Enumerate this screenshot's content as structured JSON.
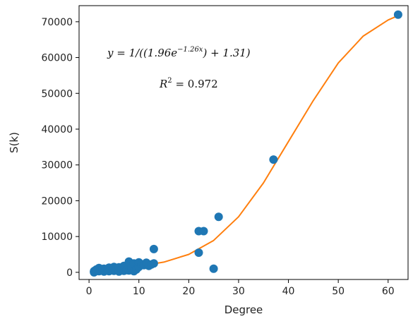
{
  "chart_data": {
    "type": "scatter",
    "title": "",
    "xlabel": "Degree",
    "ylabel": "S(k)",
    "xlim": [
      -2,
      64
    ],
    "ylim": [
      -2000,
      74500
    ],
    "xticks": [
      0,
      10,
      20,
      30,
      40,
      50,
      60
    ],
    "yticks": [
      0,
      10000,
      20000,
      30000,
      40000,
      50000,
      60000,
      70000
    ],
    "grid": false,
    "legend": "none",
    "colors": {
      "points": "#1f77b4",
      "fit": "#ff7f0e",
      "axes": "#000000"
    },
    "series": [
      {
        "type": "scatter",
        "x": [
          1,
          1,
          1.2,
          1.5,
          2,
          2,
          2.3,
          2.7,
          3,
          3,
          3.3,
          3.7,
          4,
          4,
          4.3,
          4.7,
          5,
          5,
          5.3,
          5.5,
          6,
          6,
          6.5,
          7,
          7,
          7.5,
          8,
          8,
          8.5,
          9,
          9,
          9.5,
          10,
          10,
          10.5,
          11,
          11.5,
          12,
          12.5,
          13,
          13,
          22,
          22,
          23,
          25,
          26,
          37,
          62
        ],
        "y": [
          0,
          300,
          500,
          800,
          300,
          1200,
          600,
          900,
          200,
          1000,
          700,
          500,
          1300,
          300,
          800,
          1100,
          400,
          1500,
          700,
          1000,
          200,
          1400,
          900,
          400,
          1800,
          600,
          3000,
          500,
          1200,
          2500,
          300,
          800,
          1500,
          2800,
          2300,
          2000,
          2700,
          1800,
          2200,
          6500,
          2500,
          11500,
          5500,
          11500,
          1000,
          15500,
          31500,
          72000
        ]
      }
    ],
    "fit": {
      "type": "line",
      "points": [
        [
          1,
          800
        ],
        [
          5,
          1050
        ],
        [
          10,
          1700
        ],
        [
          15,
          2850
        ],
        [
          20,
          5000
        ],
        [
          25,
          8900
        ],
        [
          30,
          15500
        ],
        [
          35,
          25000
        ],
        [
          40,
          36500
        ],
        [
          45,
          48000
        ],
        [
          50,
          58500
        ],
        [
          55,
          66000
        ],
        [
          60,
          70500
        ],
        [
          62,
          71700
        ]
      ]
    },
    "annotations": {
      "equation": "y = 1/((1.96e",
      "equation_exp": "−1.26x",
      "equation_tail": ") + 1.31)",
      "r2_label": "R",
      "r2_sup": "2",
      "r2_value": " = 0.972"
    }
  }
}
